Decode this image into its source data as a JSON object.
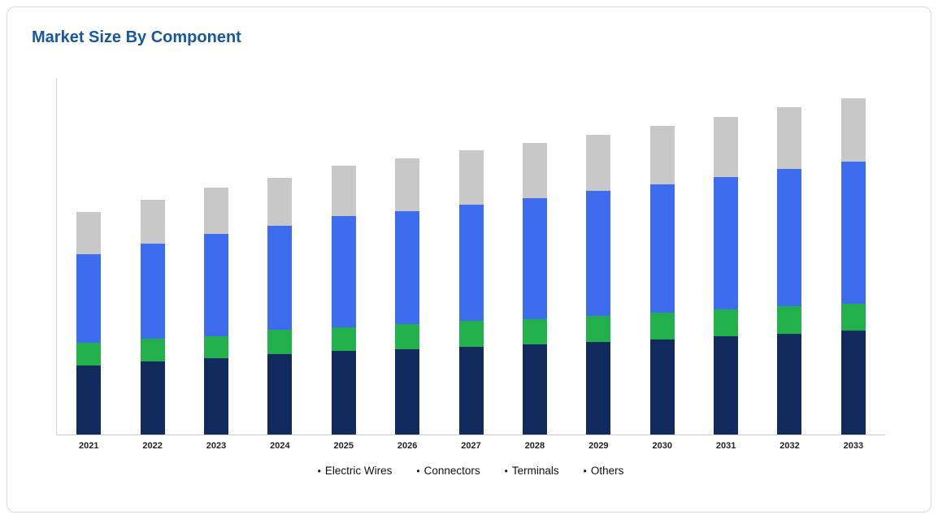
{
  "card": {
    "title": "Market Size By Component"
  },
  "chart_data": {
    "type": "bar",
    "stacked": true,
    "title": "Market Size By Component",
    "xlabel": "",
    "ylabel": "",
    "grid": false,
    "legend_position": "bottom",
    "ylim": [
      0,
      440
    ],
    "units": "relative (no value axis shown)",
    "categories": [
      "2021",
      "2022",
      "2023",
      "2024",
      "2025",
      "2026",
      "2027",
      "2028",
      "2029",
      "2030",
      "2031",
      "2032",
      "2033"
    ],
    "series": [
      {
        "name": "Electric Wires",
        "color": "#112b5e",
        "values": [
          85,
          90,
          94,
          99,
          103,
          105,
          108,
          111,
          114,
          117,
          121,
          124,
          128
        ]
      },
      {
        "name": "Connectors",
        "color": "#22b14c",
        "values": [
          28,
          28,
          27,
          30,
          29,
          31,
          32,
          31,
          32,
          33,
          33,
          34,
          33
        ]
      },
      {
        "name": "Terminals",
        "color": "#3d6cef",
        "values": [
          109,
          117,
          126,
          128,
          137,
          139,
          143,
          149,
          154,
          158,
          163,
          169,
          175
        ]
      },
      {
        "name": "Others",
        "color": "#c8c8c8",
        "values": [
          52,
          54,
          57,
          59,
          62,
          65,
          67,
          68,
          69,
          72,
          74,
          76,
          78
        ]
      }
    ],
    "legend": [
      "Electric Wires",
      "Connectors",
      "Terminals",
      "Others"
    ]
  }
}
